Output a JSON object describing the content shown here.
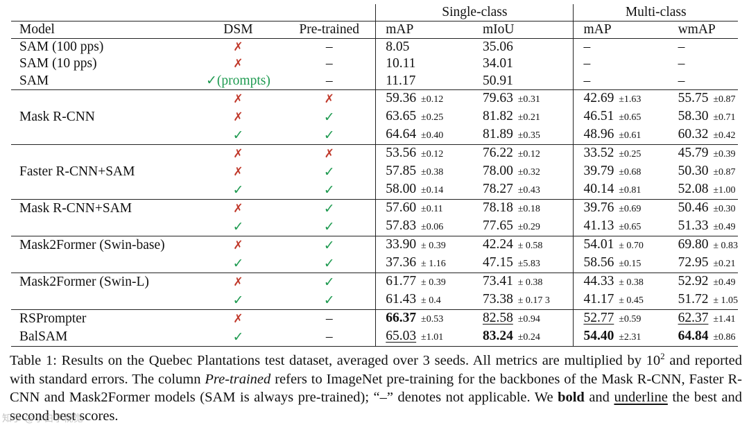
{
  "table": {
    "group_headers": {
      "single": "Single-class",
      "multi": "Multi-class"
    },
    "columns": {
      "model": "Model",
      "dsm": "DSM",
      "pre": "Pre-trained",
      "map": "mAP",
      "miou": "mIoU",
      "map2": "mAP",
      "wmap": "wmAP"
    },
    "symbols": {
      "cross": "✗",
      "check": "✓",
      "dash": "–"
    },
    "rows": [
      {
        "model": "SAM (100 pps)",
        "dsm": "cross",
        "pre": "dash",
        "v1": "8.05",
        "v2": "35.06",
        "v3": "–",
        "v4": "–"
      },
      {
        "model": "SAM (10 pps)",
        "dsm": "cross",
        "pre": "dash",
        "v1": "10.11",
        "v2": "34.01",
        "v3": "–",
        "v4": "–"
      },
      {
        "model": "SAM",
        "dsm": "check",
        "dsm_note": "(prompts)",
        "pre": "dash",
        "v1": "11.17",
        "v2": "50.91",
        "v3": "–",
        "v4": "–"
      },
      {
        "model": "",
        "dsm": "cross",
        "pre": "cross",
        "v1": "59.36",
        "e1": "±0.12",
        "v2": "79.63",
        "e2": "±0.31",
        "v3": "42.69",
        "e3": "±1.63",
        "v4": "55.75",
        "e4": "±0.87"
      },
      {
        "model": "Mask R-CNN",
        "dsm": "cross",
        "pre": "check",
        "v1": "63.65",
        "e1": "±0.25",
        "v2": "81.82",
        "e2": "±0.21",
        "v3": "46.51",
        "e3": "±0.65",
        "v4": "58.30",
        "e4": "±0.71"
      },
      {
        "model": "",
        "dsm": "check",
        "pre": "check",
        "v1": "64.64",
        "e1": "±0.40",
        "v2": "81.89",
        "e2": "±0.35",
        "v3": "48.96",
        "e3": "±0.61",
        "v4": "60.32",
        "e4": "±0.42"
      },
      {
        "model": "",
        "dsm": "cross",
        "pre": "cross",
        "v1": "53.56",
        "e1": "±0.12",
        "v2": "76.22",
        "e2": "±0.12",
        "v3": "33.52",
        "e3": "±0.25",
        "v4": "45.79",
        "e4": "±0.39"
      },
      {
        "model": "Faster R-CNN+SAM",
        "dsm": "cross",
        "pre": "check",
        "v1": "57.85",
        "e1": "±0.38",
        "v2": "78.00",
        "e2": "±0.32",
        "v3": "39.79",
        "e3": "±0.68",
        "v4": "50.30",
        "e4": "±0.87"
      },
      {
        "model": "",
        "dsm": "check",
        "pre": "check",
        "v1": "58.00",
        "e1": "±0.14",
        "v2": "78.27",
        "e2": "±0.43",
        "v3": "40.14",
        "e3": "±0.81",
        "v4": "52.08",
        "e4": "±1.00"
      },
      {
        "model": "Mask R-CNN+SAM",
        "dsm": "cross",
        "pre": "check",
        "v1": "57.60",
        "e1": "±0.11",
        "v2": "78.18",
        "e2": "±0.18",
        "v3": "39.76",
        "e3": "±0.69",
        "v4": "50.46",
        "e4": "±0.30"
      },
      {
        "model": "",
        "dsm": "check",
        "pre": "check",
        "v1": "57.83",
        "e1": "±0.06",
        "v2": "77.65",
        "e2": "±0.29",
        "v3": "41.13",
        "e3": "±0.65",
        "v4": "51.33",
        "e4": "±0.49"
      },
      {
        "model": "Mask2Former (Swin-base)",
        "dsm": "cross",
        "pre": "check",
        "v1": "33.90",
        "e1": "± 0.39",
        "v2": "42.24",
        "e2": "± 0.58",
        "v3": "54.01",
        "e3": "± 0.70",
        "v4": "69.80",
        "e4": "± 0.83"
      },
      {
        "model": "",
        "dsm": "check",
        "pre": "check",
        "v1": "37.36",
        "e1": "± 1.16",
        "v2": "47.15",
        "e2": "±5.83",
        "v3": "58.56",
        "e3": "±0.15",
        "v4": "72.95",
        "e4": "±0.21"
      },
      {
        "model": "Mask2Former (Swin-L)",
        "dsm": "cross",
        "pre": "check",
        "v1": "61.77",
        "e1": "± 0.39",
        "v2": "73.41",
        "e2": "± 0.38",
        "v3": "44.33",
        "e3": "± 0.38",
        "v4": "52.92",
        "e4": "±0.49"
      },
      {
        "model": "",
        "dsm": "check",
        "pre": "check",
        "v1": "61.43",
        "e1": "± 0.4",
        "v2": "73.38",
        "e2": "± 0.17 3",
        "v3": "41.17",
        "e3": "± 0.45",
        "v4": "51.72",
        "e4": "± 1.05"
      },
      {
        "model": "RSPrompter",
        "dsm": "cross",
        "pre": "dash",
        "v1": "66.37",
        "e1": "±0.53",
        "v2": "82.58",
        "e2": "±0.94",
        "v3": "52.77",
        "e3": "±0.59",
        "v4": "62.37",
        "e4": "±1.41"
      },
      {
        "model": "BalSAM",
        "dsm": "check",
        "pre": "dash",
        "v1": "65.03",
        "e1": "±1.01",
        "v2": "83.24",
        "e2": "±0.24",
        "v3": "54.40",
        "e3": "±2.31",
        "v4": "64.84",
        "e4": "±0.86"
      }
    ]
  },
  "caption": {
    "label": "Table 1:",
    "part1": "Results on the Quebec Plantations test dataset, averaged over 3 seeds. All metrics are multiplied by 10",
    "exp": "2",
    "part2": "and reported with standard errors. The column",
    "italic": "Pre-trained",
    "part3": "refers to ImageNet pre-training for the backbones of the Mask R-CNN, Faster R-CNN and Mask2Former models (SAM is always pre-trained); “–” denotes not applicable. We",
    "bold_word": "bold",
    "and_word": "and",
    "underline_word": "underline",
    "part4": "the best and second best scores."
  },
  "watermark": "知乎 @小白学视觉"
}
